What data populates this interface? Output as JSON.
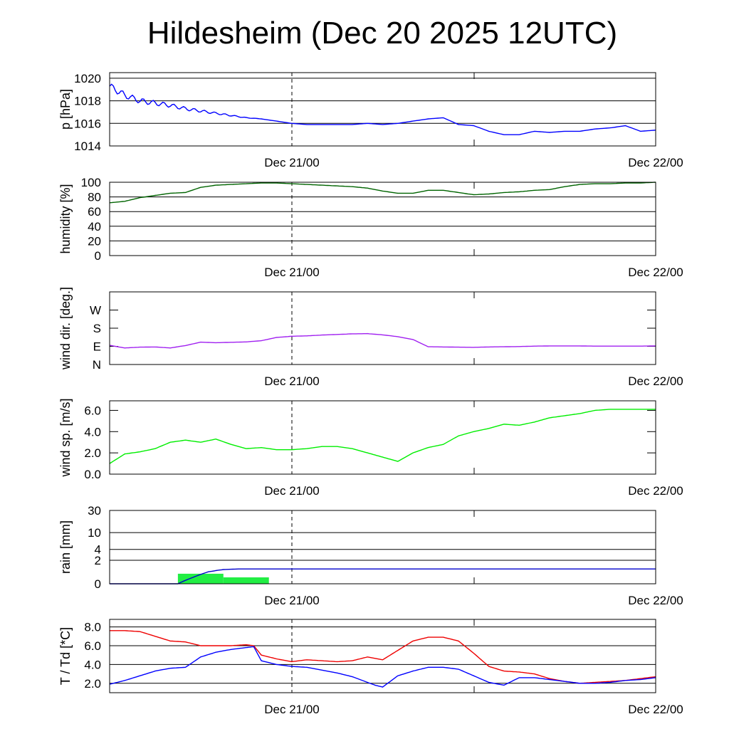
{
  "title": "Hildesheim (Dec 20 2025 12UTC)",
  "chart_data": [
    {
      "id": "pressure",
      "type": "line",
      "ylabel": "p [hPa]",
      "ylim": [
        1014,
        1020.5
      ],
      "ticks": [
        1014,
        1016,
        1018,
        1020
      ],
      "tick_labels": [
        "1014",
        "1016",
        "1018",
        "1020"
      ],
      "grid": true,
      "x_tick_labels": [
        "Dec 21/00",
        "Dec 22/00"
      ],
      "series": [
        {
          "name": "pressure",
          "color": "#0000ff",
          "jitter": 0.3,
          "jitter_until": 10,
          "x": [
            0,
            1,
            2,
            3,
            4,
            5,
            6,
            7,
            8,
            9,
            10,
            11,
            12,
            13,
            14,
            15,
            16,
            17,
            18,
            19,
            20,
            21,
            22,
            23,
            24,
            25,
            26,
            27,
            28,
            29,
            30,
            31,
            32,
            33,
            34,
            35,
            36
          ],
          "y": [
            1019.3,
            1018.5,
            1018.0,
            1017.8,
            1017.6,
            1017.3,
            1017.1,
            1016.9,
            1016.7,
            1016.5,
            1016.4,
            1016.2,
            1016.0,
            1015.9,
            1015.9,
            1015.9,
            1015.9,
            1016.0,
            1015.9,
            1016.0,
            1016.2,
            1016.4,
            1016.5,
            1015.9,
            1015.8,
            1015.3,
            1015.0,
            1015.0,
            1015.3,
            1015.2,
            1015.3,
            1015.3,
            1015.5,
            1015.6,
            1015.8,
            1015.3,
            1015.4
          ]
        }
      ]
    },
    {
      "id": "humidity",
      "type": "line",
      "ylabel": "humidity [%]",
      "ylim": [
        0,
        100
      ],
      "ticks": [
        0,
        20,
        40,
        60,
        80,
        100
      ],
      "tick_labels": [
        "0",
        "20",
        "40",
        "60",
        "80",
        "100"
      ],
      "grid": true,
      "x_tick_labels": [
        "Dec 21/00",
        "Dec 22/00"
      ],
      "series": [
        {
          "name": "humidity",
          "color": "#006400",
          "x": [
            0,
            1,
            2,
            3,
            4,
            5,
            6,
            7,
            8,
            9,
            10,
            11,
            12,
            13,
            14,
            15,
            16,
            17,
            18,
            19,
            20,
            21,
            22,
            23,
            24,
            25,
            26,
            27,
            28,
            29,
            30,
            31,
            32,
            33,
            34,
            35,
            36
          ],
          "y": [
            72,
            74,
            79,
            82,
            85,
            86,
            93,
            96,
            97,
            98,
            99,
            99,
            98,
            97,
            96,
            95,
            94,
            92,
            88,
            85,
            85,
            89,
            89,
            86,
            83,
            84,
            86,
            87,
            89,
            90,
            94,
            97,
            98,
            98,
            99,
            99,
            100
          ]
        }
      ]
    },
    {
      "id": "wind-direction",
      "type": "line",
      "ylabel": "wind dir. [deg.]",
      "ylim": [
        0,
        360
      ],
      "ticks": [
        0,
        90,
        180,
        270
      ],
      "tick_labels": [
        "N",
        "E",
        "S",
        "W"
      ],
      "grid": false,
      "x_tick_labels": [
        "Dec 21/00",
        "Dec 22/00"
      ],
      "series": [
        {
          "name": "wind direction",
          "color": "#a020f0",
          "x": [
            0,
            1,
            2,
            3,
            4,
            5,
            6,
            7,
            8,
            9,
            10,
            11,
            12,
            13,
            14,
            15,
            16,
            17,
            18,
            19,
            20,
            21,
            22,
            23,
            24,
            25,
            26,
            27,
            28,
            29,
            30,
            31,
            32,
            33,
            34,
            35,
            36
          ],
          "y": [
            95,
            82,
            86,
            87,
            82,
            94,
            111,
            108,
            110,
            112,
            118,
            134,
            140,
            142,
            146,
            149,
            152,
            153,
            147,
            138,
            124,
            88,
            87,
            86,
            85,
            87,
            88,
            89,
            91,
            92,
            92,
            92,
            91,
            91,
            91,
            91,
            92
          ]
        }
      ]
    },
    {
      "id": "wind-speed",
      "type": "line",
      "ylabel": "wind sp. [m/s]",
      "ylim": [
        0,
        6.9
      ],
      "ticks": [
        0,
        2,
        4,
        6
      ],
      "tick_labels": [
        "0.0",
        "2.0",
        "4.0",
        "6.0"
      ],
      "grid": false,
      "x_tick_labels": [
        "Dec 21/00",
        "Dec 22/00"
      ],
      "series": [
        {
          "name": "wind speed",
          "color": "#00ee00",
          "x": [
            0,
            1,
            2,
            3,
            4,
            5,
            6,
            7,
            8,
            9,
            10,
            11,
            12,
            13,
            14,
            15,
            16,
            17,
            18,
            19,
            20,
            21,
            22,
            23,
            24,
            25,
            26,
            27,
            28,
            29,
            30,
            31,
            32,
            33,
            34,
            35,
            36
          ],
          "y": [
            1.0,
            1.9,
            2.1,
            2.4,
            3.0,
            3.2,
            3.0,
            3.3,
            2.8,
            2.4,
            2.5,
            2.3,
            2.3,
            2.4,
            2.6,
            2.6,
            2.4,
            2.0,
            1.6,
            1.2,
            2.0,
            2.5,
            2.8,
            3.6,
            4.0,
            4.3,
            4.7,
            4.6,
            4.9,
            5.3,
            5.5,
            5.7,
            6.0,
            6.1,
            6.1,
            6.1,
            6.1
          ]
        }
      ]
    },
    {
      "id": "rain",
      "type": "line",
      "ylabel": "rain [mm]",
      "ylim": [
        0,
        30
      ],
      "ticks": [
        0,
        2,
        4,
        10,
        30
      ],
      "tick_labels": [
        "0",
        "2",
        "4",
        "10",
        "30"
      ],
      "grid": true,
      "scale": "log1p",
      "x_tick_labels": [
        "Dec 21/00",
        "Dec 22/00"
      ],
      "bars": [
        {
          "x0": 4.5,
          "x1": 7.5,
          "value": 0.6
        },
        {
          "x0": 7.5,
          "x1": 10.5,
          "value": 0.35
        }
      ],
      "bar_color": "#22ee44",
      "series": [
        {
          "name": "accumulated rain",
          "color": "#0000cc",
          "x": [
            0,
            4.5,
            5.5,
            6.5,
            7.5,
            8.5,
            9.5,
            36
          ],
          "y": [
            0,
            0.0,
            0.35,
            0.75,
            0.95,
            1.0,
            1.0,
            1.0
          ]
        }
      ]
    },
    {
      "id": "temperature",
      "type": "line",
      "ylabel": "T / Td [*C]",
      "ylim": [
        1.0,
        8.8
      ],
      "ticks": [
        2,
        4,
        6,
        8
      ],
      "tick_labels": [
        "2.0",
        "4.0",
        "6.0",
        "8.0"
      ],
      "grid": true,
      "x_tick_labels": [
        "Dec 21/00",
        "Dec 22/00"
      ],
      "series": [
        {
          "name": "temperature",
          "color": "#ee0000",
          "x": [
            0,
            1,
            2,
            3,
            4,
            5,
            6,
            7,
            8,
            9,
            9.5,
            10,
            11,
            12,
            13,
            14,
            15,
            16,
            17,
            18,
            19,
            20,
            21,
            22,
            23,
            24,
            25,
            26,
            27,
            28,
            29,
            30,
            31,
            32,
            33,
            34,
            35,
            36
          ],
          "y": [
            7.6,
            7.6,
            7.5,
            7.0,
            6.5,
            6.4,
            6.0,
            6.0,
            6.0,
            6.1,
            6.0,
            5.0,
            4.6,
            4.3,
            4.5,
            4.4,
            4.3,
            4.4,
            4.8,
            4.5,
            5.5,
            6.5,
            6.9,
            6.9,
            6.5,
            5.2,
            3.8,
            3.3,
            3.2,
            3.0,
            2.5,
            2.2,
            2.0,
            2.1,
            2.2,
            2.3,
            2.5,
            2.7
          ]
        },
        {
          "name": "dew point",
          "color": "#0000ff",
          "x": [
            0,
            1,
            2,
            3,
            4,
            5,
            6,
            7,
            8,
            9,
            9.5,
            10,
            11,
            12,
            13,
            14,
            15,
            16,
            17,
            17.5,
            18,
            19,
            20,
            21,
            22,
            23,
            24,
            25,
            26,
            27,
            28,
            29,
            30,
            31,
            32,
            33,
            34,
            35,
            36
          ],
          "y": [
            1.9,
            2.3,
            2.8,
            3.3,
            3.6,
            3.7,
            4.8,
            5.3,
            5.6,
            5.8,
            5.9,
            4.4,
            4.0,
            3.8,
            3.7,
            3.4,
            3.1,
            2.7,
            2.1,
            1.8,
            1.6,
            2.8,
            3.3,
            3.7,
            3.7,
            3.5,
            2.8,
            2.1,
            1.8,
            2.6,
            2.6,
            2.4,
            2.2,
            2.0,
            2.0,
            2.1,
            2.3,
            2.4,
            2.6
          ]
        }
      ]
    }
  ]
}
